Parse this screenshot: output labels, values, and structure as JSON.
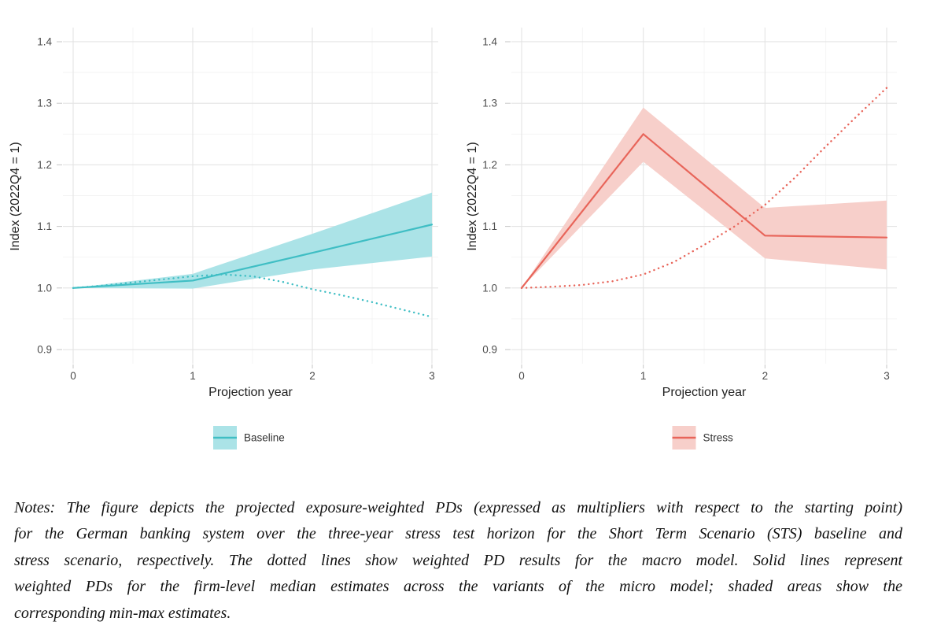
{
  "page": {
    "background": "#ffffff"
  },
  "chart_data": [
    {
      "type": "line",
      "panel": "left",
      "title": "",
      "xlabel": "Projection year",
      "ylabel": "Index (2022Q4 = 1)",
      "legend_label": "Baseline",
      "legend_position": "bottom",
      "grid": "major+minor",
      "x_ticks": [
        0,
        1,
        2,
        3
      ],
      "y_ticks": [
        0.9,
        1.0,
        1.1,
        1.2,
        1.3,
        1.4
      ],
      "x_minor_ticks": [
        0.5,
        1.5,
        2.5
      ],
      "y_minor_ticks": [
        0.95,
        1.05,
        1.15,
        1.25,
        1.35
      ],
      "xlim": [
        -0.09,
        3.05
      ],
      "ylim": [
        0.877,
        1.423
      ],
      "colors": {
        "line": "#3FBEC4",
        "band": "#ABE3E7"
      },
      "series": [
        {
          "name": "micro-model-median",
          "style": "solid",
          "x": [
            0,
            1,
            2,
            3
          ],
          "y": [
            1.0,
            1.012,
            1.057,
            1.103
          ]
        },
        {
          "name": "micro-model-min-max",
          "style": "band",
          "x": [
            0,
            1,
            2,
            3
          ],
          "lower": [
            1.0,
            0.999,
            1.03,
            1.051
          ],
          "upper": [
            1.0,
            1.023,
            1.088,
            1.155
          ]
        },
        {
          "name": "macro-model",
          "style": "dotted",
          "x": [
            0,
            0.25,
            0.5,
            0.75,
            1,
            1.25,
            1.5,
            1.75,
            2,
            2.25,
            2.5,
            2.75,
            3
          ],
          "y": [
            1.0,
            1.004,
            1.009,
            1.014,
            1.019,
            1.022,
            1.019,
            1.01,
            0.998,
            0.988,
            0.977,
            0.965,
            0.953
          ]
        }
      ]
    },
    {
      "type": "line",
      "panel": "right",
      "title": "",
      "xlabel": "Projection year",
      "ylabel": "Index (2022Q4 = 1)",
      "legend_label": "Stress",
      "legend_position": "bottom",
      "grid": "major+minor",
      "x_ticks": [
        0,
        1,
        2,
        3
      ],
      "y_ticks": [
        0.9,
        1.0,
        1.1,
        1.2,
        1.3,
        1.4
      ],
      "x_minor_ticks": [
        0.5,
        1.5,
        2.5
      ],
      "y_minor_ticks": [
        0.95,
        1.05,
        1.15,
        1.25,
        1.35
      ],
      "xlim": [
        -0.09,
        3.05
      ],
      "ylim": [
        0.877,
        1.423
      ],
      "colors": {
        "line": "#E8655A",
        "band": "#F7CFCA"
      },
      "series": [
        {
          "name": "micro-model-median",
          "style": "solid",
          "x": [
            0,
            1,
            2,
            3
          ],
          "y": [
            1.0,
            1.25,
            1.085,
            1.082
          ]
        },
        {
          "name": "micro-model-min-max",
          "style": "band",
          "x": [
            0,
            1,
            2,
            3
          ],
          "lower": [
            1.0,
            1.205,
            1.048,
            1.03
          ],
          "upper": [
            1.0,
            1.293,
            1.13,
            1.142
          ]
        },
        {
          "name": "macro-model",
          "style": "dotted",
          "x": [
            0,
            0.25,
            0.5,
            0.75,
            1,
            1.25,
            1.5,
            1.75,
            2,
            2.25,
            2.5,
            2.75,
            3
          ],
          "y": [
            1.0,
            1.002,
            1.005,
            1.011,
            1.022,
            1.042,
            1.07,
            1.1,
            1.135,
            1.18,
            1.23,
            1.278,
            1.325
          ]
        }
      ]
    }
  ],
  "notes": {
    "lines": [
      "Notes: The figure depicts the projected exposure-weighted PDs (expressed as multipliers with respect to the starting point)",
      "for the German banking system over the three-year stress test horizon for the Short Term Scenario (STS) baseline and",
      "stress scenario, respectively. The dotted lines show weighted PD results for the macro model. Solid lines represent",
      "weighted PDs for the firm-level median estimates across the variants of the micro model; shaded areas show the",
      "corresponding min-max estimates."
    ]
  }
}
